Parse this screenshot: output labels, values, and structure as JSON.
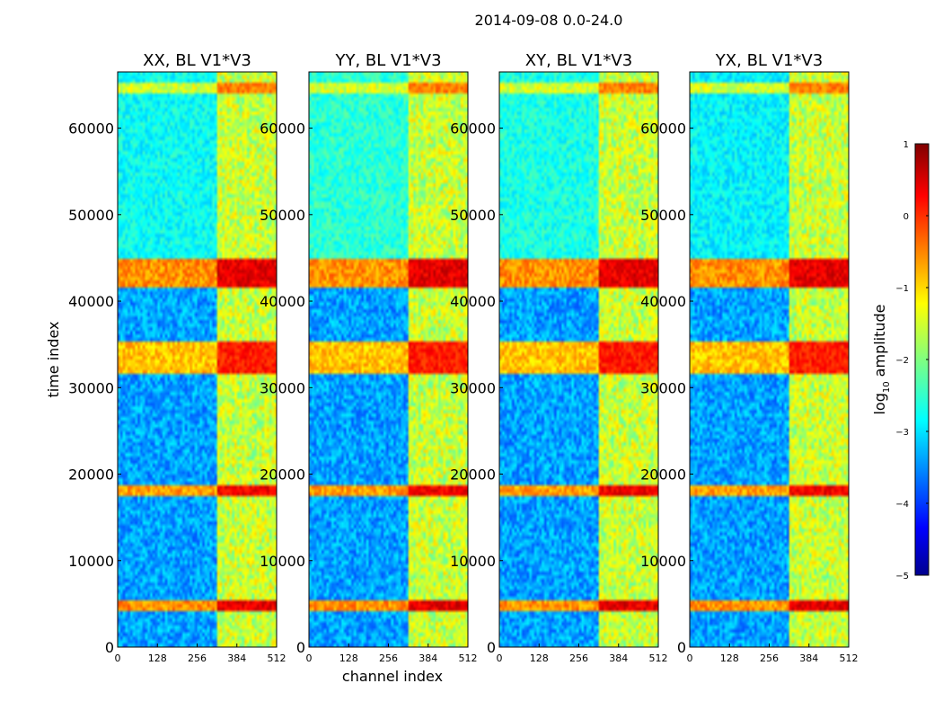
{
  "figure": {
    "suptitle": "2014-09-08 0.0-24.0",
    "xlabel": "channel index",
    "ylabel": "time index"
  },
  "colorbar": {
    "label_prefix": "log",
    "label_sub": "10",
    "label_suffix": " amplitude",
    "range": [
      -5,
      1
    ],
    "ticks": [
      1,
      0,
      -1,
      -2,
      -3,
      -4,
      -5
    ],
    "tick_labels": [
      "1",
      "0",
      "−1",
      "−2",
      "−3",
      "−4",
      "−5"
    ],
    "colormap": "jet"
  },
  "chart_data": {
    "type": "heatmap",
    "colormap": "jet",
    "value_range": [
      -5,
      1
    ],
    "xlim": [
      0,
      512
    ],
    "ylim": [
      0,
      66500
    ],
    "x_ticks": [
      0,
      128,
      256,
      384,
      512
    ],
    "x_tick_labels": [
      "0",
      "128",
      "256",
      "384",
      "512"
    ],
    "y_ticks": [
      0,
      10000,
      20000,
      30000,
      40000,
      50000,
      60000
    ],
    "y_tick_labels": [
      "0",
      "10000",
      "20000",
      "30000",
      "40000",
      "50000",
      "60000"
    ],
    "background_level": -3.3,
    "panels": [
      {
        "title": "XX, BL V1*V3",
        "quiet_upper_level": -2.7
      },
      {
        "title": "YY, BL V1*V3",
        "quiet_upper_level": -2.5
      },
      {
        "title": "XY, BL V1*V3",
        "quiet_upper_level": -2.6
      },
      {
        "title": "YX, BL V1*V3",
        "quiet_upper_level": -2.8
      }
    ],
    "rfi_channel_band": [
      320,
      512
    ],
    "rfi_vertical_lines": [
      326,
      345,
      380,
      412,
      440,
      475,
      500
    ],
    "strong_time_bands": [
      {
        "t0": 41500,
        "t1": 44800,
        "level": 0.7
      },
      {
        "t0": 31500,
        "t1": 35500,
        "level": 0.4
      },
      {
        "t0": 17500,
        "t1": 18600,
        "level": 0.6
      },
      {
        "t0": 4200,
        "t1": 5200,
        "level": 0.7
      },
      {
        "t0": 64000,
        "t1": 65200,
        "level": -0.2
      }
    ]
  }
}
